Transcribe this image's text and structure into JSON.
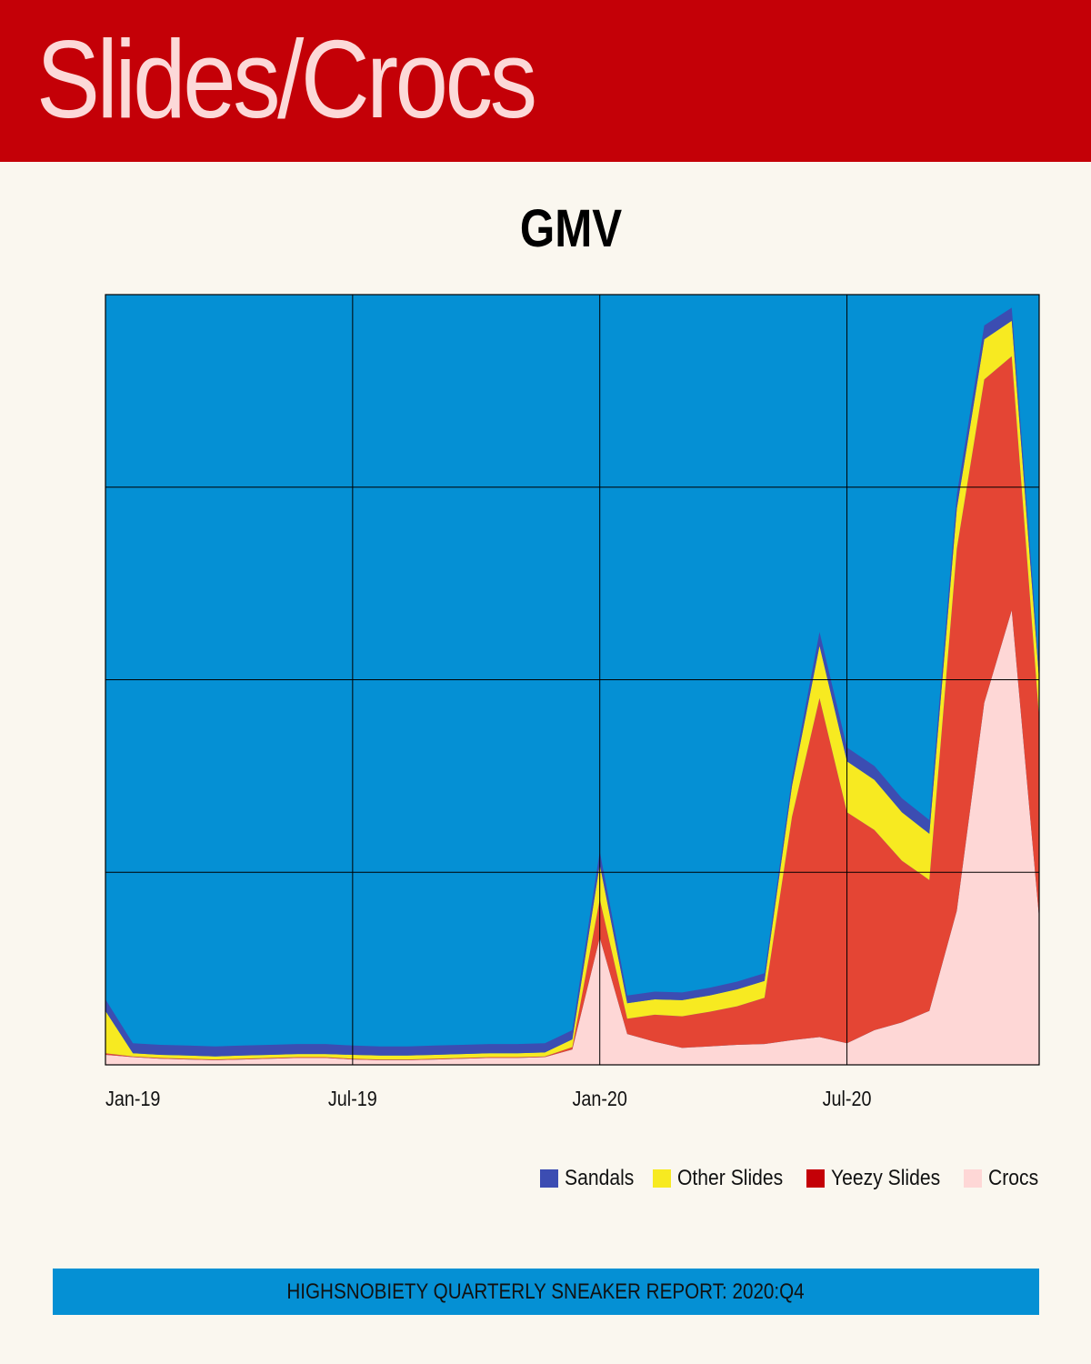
{
  "header": {
    "title": "Slides/Crocs"
  },
  "footer": {
    "text": "HIGHSNOBIETY QUARTERLY SNEAKER REPORT: 2020:Q4"
  },
  "colors": {
    "banner": "#c40007",
    "background": "#faf7ef",
    "plot_background": "#0590d4",
    "sandals": "#3c4db2",
    "other_slides": "#f7ea21",
    "yeezy_slides": "#e44534",
    "crocs": "#fed7d6"
  },
  "chart_data": {
    "type": "area",
    "stacked": true,
    "title": "GMV",
    "xlabel": "",
    "ylabel": "",
    "x": [
      "2019-01-01",
      "2019-01-22",
      "2019-02-12",
      "2019-03-05",
      "2019-03-26",
      "2019-04-16",
      "2019-05-07",
      "2019-05-28",
      "2019-06-18",
      "2019-07-09",
      "2019-07-30",
      "2019-08-20",
      "2019-09-10",
      "2019-10-01",
      "2019-10-22",
      "2019-11-12",
      "2019-12-03",
      "2019-12-24",
      "2020-01-14",
      "2020-02-04",
      "2020-02-25",
      "2020-03-17",
      "2020-04-07",
      "2020-04-28",
      "2020-05-19",
      "2020-06-09",
      "2020-06-30",
      "2020-07-21",
      "2020-08-11",
      "2020-09-01",
      "2020-09-22",
      "2020-10-13",
      "2020-11-03",
      "2020-11-24",
      "2020-12-15"
    ],
    "x_tick_labels": [
      "Jan-19",
      "Jul-19",
      "Jan-20",
      "Jul-20"
    ],
    "x_ticks": [
      "2019-01-01",
      "2019-07-09",
      "2020-01-14",
      "2020-07-21"
    ],
    "ylim": [
      0,
      100
    ],
    "y_ticks": [
      0,
      25,
      50,
      75,
      100
    ],
    "y_tick_labels_shown": false,
    "grid": true,
    "legend_position": "bottom-right",
    "series": [
      {
        "name": "Crocs",
        "color": "#fed7d6",
        "values": [
          1.3,
          1.0,
          0.8,
          0.7,
          0.6,
          0.7,
          0.8,
          0.9,
          0.9,
          0.7,
          0.6,
          0.6,
          0.7,
          0.8,
          0.9,
          0.9,
          1.0,
          2.0,
          16.5,
          4.0,
          3.0,
          2.2,
          2.4,
          2.6,
          2.7,
          3.2,
          3.6,
          2.8,
          4.5,
          5.5,
          7.0,
          20.0,
          47.0,
          59.0,
          19.0
        ]
      },
      {
        "name": "Yeezy Slides",
        "color": "#e44534",
        "values": [
          0.2,
          0.1,
          0.1,
          0.1,
          0.1,
          0.1,
          0.1,
          0.1,
          0.1,
          0.1,
          0.1,
          0.1,
          0.1,
          0.1,
          0.1,
          0.1,
          0.1,
          0.3,
          5.0,
          2.0,
          3.5,
          4.1,
          4.5,
          5.0,
          6.0,
          29.0,
          44.0,
          30.0,
          26.0,
          21.0,
          17.0,
          47.0,
          42.0,
          33.0,
          26.0
        ]
      },
      {
        "name": "Other Slides",
        "color": "#f7ea21",
        "values": [
          5.5,
          0.4,
          0.4,
          0.4,
          0.4,
          0.4,
          0.4,
          0.4,
          0.4,
          0.5,
          0.5,
          0.5,
          0.5,
          0.5,
          0.5,
          0.5,
          0.5,
          1.0,
          4.5,
          2.0,
          2.0,
          2.1,
          2.1,
          2.2,
          2.2,
          4.0,
          6.8,
          6.6,
          6.5,
          6.3,
          6.0,
          5.2,
          5.2,
          4.6,
          5.0
        ]
      },
      {
        "name": "Sandals",
        "color": "#3c4db2",
        "values": [
          1.5,
          1.3,
          1.3,
          1.3,
          1.3,
          1.3,
          1.3,
          1.3,
          1.3,
          1.2,
          1.2,
          1.2,
          1.2,
          1.2,
          1.2,
          1.2,
          1.2,
          1.2,
          1.7,
          1.0,
          1.0,
          1.0,
          1.0,
          1.0,
          1.0,
          1.0,
          1.8,
          1.8,
          1.8,
          1.8,
          1.8,
          1.8,
          1.8,
          1.7,
          1.7
        ]
      }
    ]
  }
}
